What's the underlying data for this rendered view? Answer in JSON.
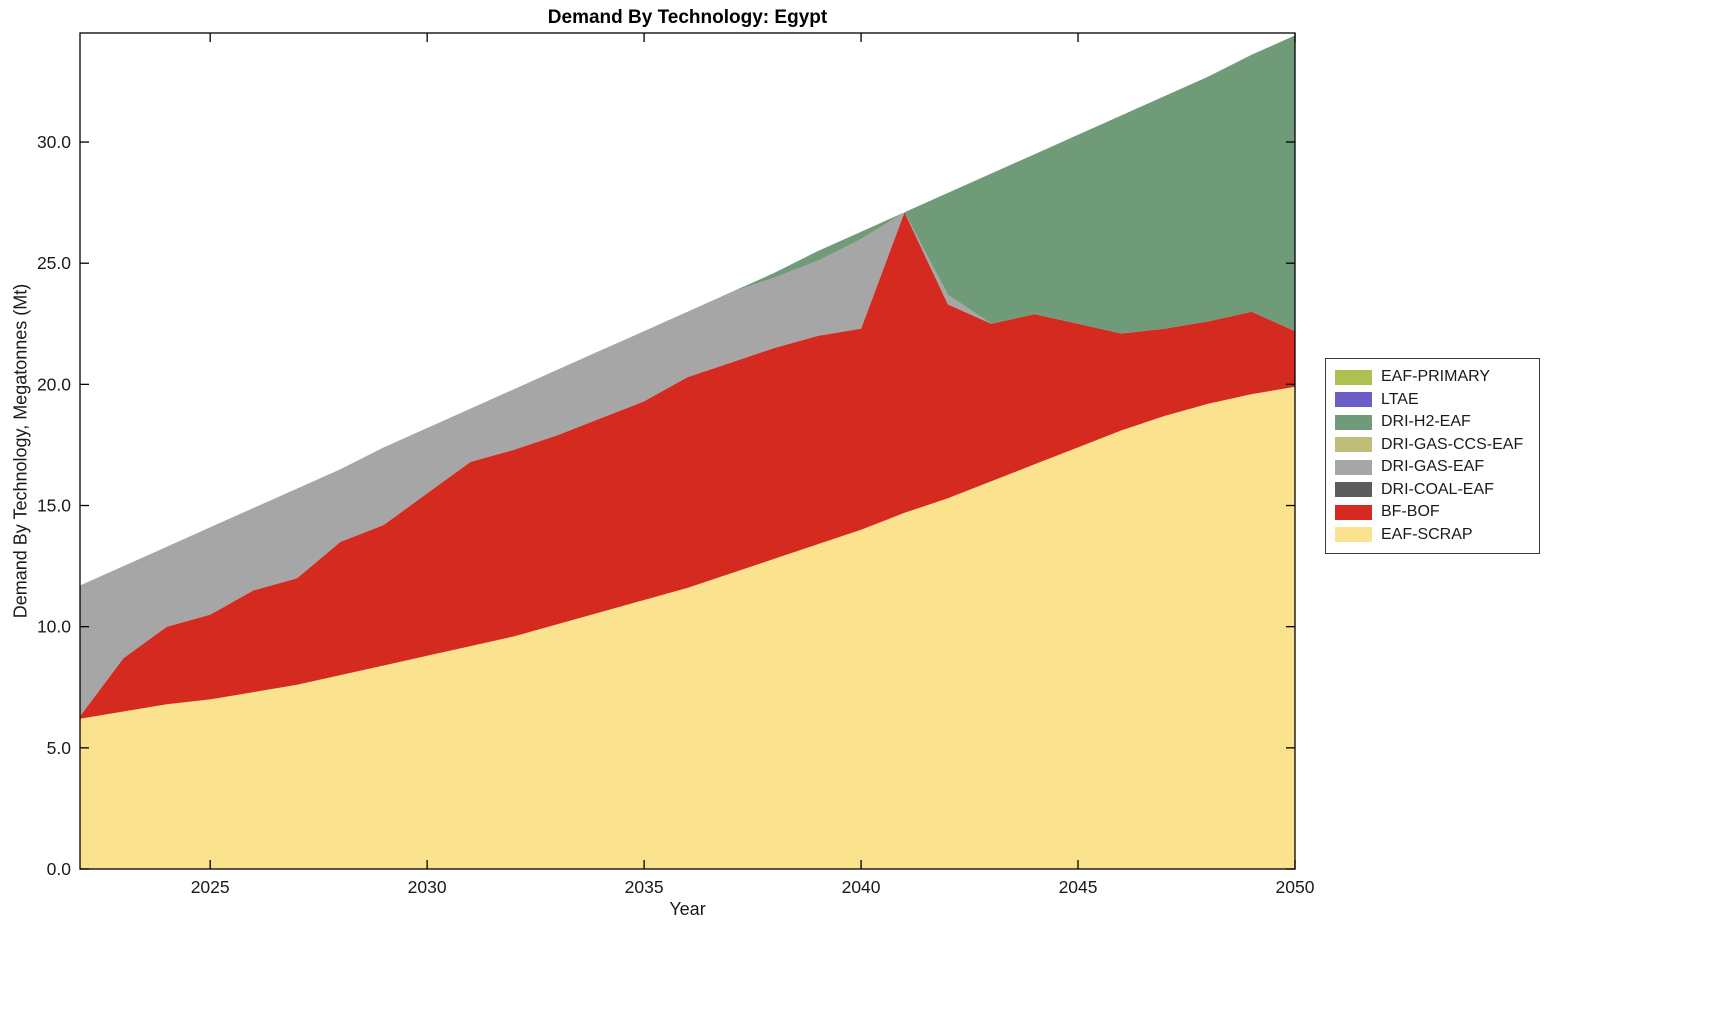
{
  "chart_data": {
    "type": "area",
    "stacked": true,
    "title": "Demand By Technology: Egypt",
    "xlabel": "Year",
    "ylabel": "Demand By Technology, Megatonnes (Mt)",
    "xlim": [
      2022,
      2050
    ],
    "ylim": [
      0,
      34.5
    ],
    "grid": false,
    "legend_position": "right-outside",
    "x": [
      2022,
      2023,
      2024,
      2025,
      2026,
      2027,
      2028,
      2029,
      2030,
      2031,
      2032,
      2033,
      2034,
      2035,
      2036,
      2037,
      2038,
      2039,
      2040,
      2041,
      2042,
      2043,
      2044,
      2045,
      2046,
      2047,
      2048,
      2049,
      2050
    ],
    "xticks": {
      "values": [
        2025,
        2030,
        2035,
        2040,
        2045,
        2050
      ],
      "labels": [
        "2025",
        "2030",
        "2035",
        "2040",
        "2045",
        "2050"
      ]
    },
    "yticks": {
      "values": [
        0,
        5,
        10,
        15,
        20,
        25,
        30
      ],
      "labels": [
        "0.0",
        "5.0",
        "10.0",
        "15.0",
        "20.0",
        "25.0",
        "30.0"
      ]
    },
    "series": [
      {
        "name": "EAF-SCRAP",
        "color": "#fae28f",
        "values": [
          6.2,
          6.5,
          6.8,
          7.0,
          7.3,
          7.6,
          8.0,
          8.4,
          8.8,
          9.2,
          9.6,
          10.1,
          10.6,
          11.1,
          11.6,
          12.2,
          12.8,
          13.4,
          14.0,
          14.7,
          15.3,
          16.0,
          16.7,
          17.4,
          18.1,
          18.7,
          19.2,
          19.6,
          19.9
        ]
      },
      {
        "name": "BF-BOF",
        "color": "#d42a1f",
        "values": [
          0.1,
          2.2,
          3.2,
          3.5,
          4.2,
          4.4,
          5.5,
          5.8,
          6.7,
          7.6,
          7.7,
          7.8,
          8.0,
          8.2,
          8.7,
          8.7,
          8.7,
          8.6,
          8.3,
          12.4,
          8.0,
          6.5,
          6.2,
          5.1,
          4.0,
          3.6,
          3.4,
          3.4,
          2.3
        ]
      },
      {
        "name": "DRI-COAL-EAF",
        "color": "#5d5d5f",
        "values": [
          0,
          0,
          0,
          0,
          0,
          0,
          0,
          0,
          0,
          0,
          0,
          0,
          0,
          0,
          0,
          0,
          0,
          0,
          0,
          0,
          0,
          0,
          0,
          0,
          0,
          0,
          0,
          0,
          0
        ]
      },
      {
        "name": "DRI-GAS-EAF",
        "color": "#a6a6a6",
        "values": [
          5.4,
          3.8,
          3.3,
          3.6,
          3.4,
          3.7,
          3.0,
          3.2,
          2.7,
          2.2,
          2.5,
          2.7,
          2.8,
          2.9,
          2.7,
          2.9,
          2.9,
          3.1,
          3.7,
          0,
          0.4,
          0,
          0,
          0,
          0,
          0,
          0,
          0,
          0
        ]
      },
      {
        "name": "DRI-GAS-CCS-EAF",
        "color": "#bebe79",
        "values": [
          0,
          0,
          0,
          0,
          0,
          0,
          0,
          0,
          0,
          0,
          0,
          0,
          0,
          0,
          0,
          0,
          0,
          0,
          0,
          0,
          0,
          0,
          0,
          0,
          0,
          0,
          0,
          0,
          0
        ]
      },
      {
        "name": "DRI-H2-EAF",
        "color": "#6f9b79",
        "values": [
          0,
          0,
          0,
          0,
          0,
          0,
          0,
          0,
          0,
          0,
          0,
          0,
          0,
          0,
          0,
          0,
          0.2,
          0.4,
          0.3,
          0,
          4.2,
          6.2,
          6.6,
          7.8,
          9.0,
          9.6,
          10.1,
          10.6,
          12.2
        ]
      },
      {
        "name": "LTAE",
        "color": "#6b5fc7",
        "values": [
          0,
          0,
          0,
          0,
          0,
          0,
          0,
          0,
          0,
          0,
          0,
          0,
          0,
          0,
          0,
          0,
          0,
          0,
          0,
          0,
          0,
          0,
          0,
          0,
          0,
          0,
          0,
          0,
          0
        ]
      },
      {
        "name": "EAF-PRIMARY",
        "color": "#afc050",
        "values": [
          0,
          0,
          0,
          0,
          0,
          0,
          0,
          0,
          0,
          0,
          0,
          0,
          0,
          0,
          0,
          0,
          0,
          0,
          0,
          0,
          0,
          0,
          0,
          0,
          0,
          0,
          0,
          0,
          0
        ]
      }
    ],
    "legend_entries": [
      "EAF-PRIMARY",
      "LTAE",
      "DRI-H2-EAF",
      "DRI-GAS-CCS-EAF",
      "DRI-GAS-EAF",
      "DRI-COAL-EAF",
      "BF-BOF",
      "EAF-SCRAP"
    ]
  }
}
